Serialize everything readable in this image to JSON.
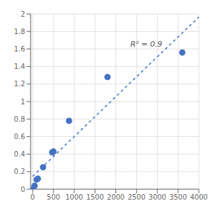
{
  "chart_data": {
    "type": "scatter",
    "series": [
      {
        "type": "scatter",
        "color": "#4472C4",
        "marker": "circle",
        "x": [
          0,
          47,
          94,
          125,
          250,
          469,
          500,
          875,
          1800,
          3600
        ],
        "values": [
          0.0,
          0.04,
          0.11,
          0.12,
          0.25,
          0.42,
          0.43,
          0.78,
          1.28,
          1.56
        ]
      },
      {
        "type": "line",
        "color": "#4472C4",
        "line_style": "dashed",
        "x": [
          0,
          4000
        ],
        "values": [
          0.14605,
          1.96539
        ]
      }
    ],
    "annotations": [
      {
        "text": "R² = 0.9",
        "x": 2350,
        "y": 1.63
      }
    ],
    "xlim": [
      -50,
      4000
    ],
    "ylim": [
      0,
      2
    ],
    "xticks": [
      0,
      500,
      1000,
      1500,
      2000,
      2500,
      3000,
      3500,
      4000
    ],
    "yticks": [
      0,
      0.2,
      0.4,
      0.6,
      0.8,
      1,
      1.2,
      1.4,
      1.6,
      1.8,
      2
    ],
    "grid": true
  }
}
